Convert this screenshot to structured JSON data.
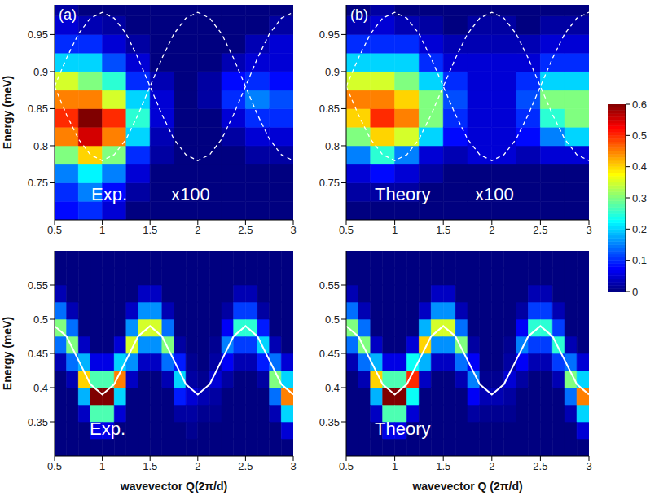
{
  "chart_data": [
    {
      "type": "heatmap",
      "panel_label": "(a)",
      "annotations": [
        "Exp.",
        "x100"
      ],
      "y_label": "Energy (meV)",
      "xlim": [
        0.5,
        3
      ],
      "xticks": [
        0.5,
        1,
        1.5,
        2,
        2.5,
        3
      ],
      "ylim": [
        0.7,
        0.99
      ],
      "yticks": [
        0.75,
        0.8,
        0.85,
        0.9,
        0.95
      ],
      "q_edges": [
        0.5,
        0.75,
        1,
        1.25,
        1.5,
        1.75,
        2,
        2.25,
        2.5,
        2.75,
        3
      ],
      "energy_edges": [
        0.7,
        0.725,
        0.75,
        0.775,
        0.8,
        0.825,
        0.85,
        0.875,
        0.9,
        0.925,
        0.95,
        0.975,
        0.99
      ],
      "intensity_by_q_bin": [
        [
          0.08,
          0.1,
          0.15,
          0.3,
          0.45,
          0.5,
          0.45,
          0.35,
          0.2,
          0.1,
          0.05,
          0.02
        ],
        [
          0.1,
          0.15,
          0.22,
          0.4,
          0.55,
          0.6,
          0.45,
          0.3,
          0.2,
          0.1,
          0.03,
          0
        ],
        [
          0.05,
          0.08,
          0.15,
          0.3,
          0.45,
          0.5,
          0.35,
          0.25,
          0.12,
          0.05,
          0.02,
          0
        ],
        [
          0,
          0.02,
          0.05,
          0.1,
          0.2,
          0.25,
          0.2,
          0.1,
          0.05,
          0.02,
          0,
          0
        ],
        [
          0,
          0,
          0,
          0.02,
          0.03,
          0.05,
          0.05,
          0.03,
          0,
          0,
          0,
          0
        ],
        [
          0,
          0,
          0,
          0,
          0,
          0,
          0,
          0,
          0,
          0,
          0,
          0
        ],
        [
          0,
          0,
          0,
          0,
          0,
          0,
          0.02,
          0.02,
          0,
          0,
          0,
          0
        ],
        [
          0,
          0,
          0,
          0,
          0.02,
          0.05,
          0.1,
          0.08,
          0.03,
          0,
          0,
          0
        ],
        [
          0,
          0,
          0,
          0.02,
          0.05,
          0.1,
          0.15,
          0.1,
          0.05,
          0.03,
          0,
          0
        ],
        [
          0,
          0,
          0,
          0.02,
          0.05,
          0.1,
          0.12,
          0.08,
          0.05,
          0.05,
          0.02,
          0
        ]
      ],
      "x": [
        0.5,
        0.625,
        0.75,
        0.875,
        1,
        1.125,
        1.25,
        1.375,
        1.5,
        1.625,
        1.75,
        1.875,
        2,
        2.125,
        2.25,
        2.375,
        2.5,
        2.625,
        2.75,
        2.875,
        3
      ],
      "series": [
        {
          "color": "#ffffff",
          "line_style": "dashed",
          "values": [
            0.88,
            0.918,
            0.951,
            0.972,
            0.98,
            0.972,
            0.951,
            0.918,
            0.88,
            0.842,
            0.809,
            0.788,
            0.78,
            0.788,
            0.809,
            0.842,
            0.88,
            0.918,
            0.951,
            0.972,
            0.98
          ]
        },
        {
          "color": "#ffffff",
          "line_style": "dashed",
          "values": [
            0.88,
            0.842,
            0.809,
            0.788,
            0.78,
            0.788,
            0.809,
            0.842,
            0.88,
            0.918,
            0.951,
            0.972,
            0.98,
            0.972,
            0.951,
            0.918,
            0.88,
            0.842,
            0.809,
            0.788,
            0.78
          ]
        }
      ]
    },
    {
      "type": "heatmap",
      "panel_label": "(b)",
      "annotations": [
        "Theory",
        "x100"
      ],
      "xlim": [
        0.5,
        3
      ],
      "xticks": [
        0.5,
        1,
        1.5,
        2,
        2.5,
        3
      ],
      "ylim": [
        0.7,
        0.99
      ],
      "yticks": [
        0.75,
        0.8,
        0.85,
        0.9,
        0.95
      ],
      "q_edges": [
        0.5,
        0.75,
        1,
        1.25,
        1.5,
        1.75,
        2,
        2.25,
        2.5,
        2.75,
        3
      ],
      "energy_edges": [
        0.7,
        0.725,
        0.75,
        0.775,
        0.8,
        0.825,
        0.85,
        0.875,
        0.9,
        0.925,
        0.95,
        0.975,
        0.99
      ],
      "intensity_by_q_bin": [
        [
          0,
          0.02,
          0.05,
          0.15,
          0.3,
          0.4,
          0.45,
          0.35,
          0.2,
          0.1,
          0.03,
          0
        ],
        [
          0,
          0.02,
          0.08,
          0.25,
          0.4,
          0.5,
          0.45,
          0.35,
          0.2,
          0.1,
          0.05,
          0.02
        ],
        [
          0,
          0.02,
          0.05,
          0.15,
          0.35,
          0.45,
          0.4,
          0.3,
          0.2,
          0.1,
          0.03,
          0
        ],
        [
          0,
          0,
          0.02,
          0.05,
          0.2,
          0.3,
          0.3,
          0.2,
          0.1,
          0.05,
          0.02,
          0
        ],
        [
          0,
          0,
          0,
          0.03,
          0.08,
          0.1,
          0.12,
          0.1,
          0.05,
          0.03,
          0,
          0
        ],
        [
          0,
          0,
          0,
          0.05,
          0.05,
          0.05,
          0.05,
          0.05,
          0.05,
          0.03,
          0.02,
          0
        ],
        [
          0,
          0,
          0,
          0.05,
          0.05,
          0.05,
          0.05,
          0.05,
          0.05,
          0.03,
          0.02,
          0
        ],
        [
          0,
          0,
          0,
          0.03,
          0.08,
          0.1,
          0.12,
          0.1,
          0.05,
          0.03,
          0,
          0
        ],
        [
          0,
          0,
          0,
          0.05,
          0.15,
          0.25,
          0.3,
          0.2,
          0.1,
          0.05,
          0.02,
          0
        ],
        [
          0,
          0,
          0,
          0.05,
          0.2,
          0.3,
          0.3,
          0.2,
          0.1,
          0.05,
          0.02,
          0
        ]
      ],
      "x": [
        0.5,
        0.625,
        0.75,
        0.875,
        1,
        1.125,
        1.25,
        1.375,
        1.5,
        1.625,
        1.75,
        1.875,
        2,
        2.125,
        2.25,
        2.375,
        2.5,
        2.625,
        2.75,
        2.875,
        3
      ],
      "series": [
        {
          "color": "#ffffff",
          "line_style": "dashed",
          "values": [
            0.88,
            0.918,
            0.951,
            0.972,
            0.98,
            0.972,
            0.951,
            0.918,
            0.88,
            0.842,
            0.809,
            0.788,
            0.78,
            0.788,
            0.809,
            0.842,
            0.88,
            0.918,
            0.951,
            0.972,
            0.98
          ]
        },
        {
          "color": "#ffffff",
          "line_style": "dashed",
          "values": [
            0.88,
            0.842,
            0.809,
            0.788,
            0.78,
            0.788,
            0.809,
            0.842,
            0.88,
            0.918,
            0.951,
            0.972,
            0.98,
            0.972,
            0.951,
            0.918,
            0.88,
            0.842,
            0.809,
            0.788,
            0.78
          ]
        }
      ],
      "colorbar": {
        "range": [
          0,
          0.6
        ],
        "ticks": [
          0,
          0.1,
          0.2,
          0.3,
          0.4,
          0.5,
          0.6
        ]
      }
    },
    {
      "type": "heatmap",
      "annotations": [
        "Exp."
      ],
      "y_label": "Energy (meV)",
      "x_label": "wavevector Q(2π/d)",
      "xlim": [
        0.5,
        3
      ],
      "xticks": [
        0.5,
        1,
        1.5,
        2,
        2.5,
        3
      ],
      "ylim": [
        0.3,
        0.6
      ],
      "yticks": [
        0.35,
        0.4,
        0.45,
        0.5,
        0.55
      ],
      "q_edges": [
        0.5,
        0.625,
        0.75,
        0.875,
        1,
        1.125,
        1.25,
        1.375,
        1.5,
        1.625,
        1.75,
        1.875,
        2,
        2.125,
        2.25,
        2.375,
        2.5,
        2.625,
        2.75,
        2.875,
        3
      ],
      "energy_edges": [
        0.3,
        0.325,
        0.35,
        0.375,
        0.4,
        0.425,
        0.45,
        0.475,
        0.5,
        0.525,
        0.55,
        0.575,
        0.6
      ],
      "intensity_by_q_bin": [
        [
          0,
          0,
          0,
          0,
          0,
          0.03,
          0.14,
          0.3,
          0.14,
          0.03,
          0,
          0
        ],
        [
          0,
          0,
          0,
          0,
          0.03,
          0.14,
          0.3,
          0.14,
          0.03,
          0,
          0,
          0
        ],
        [
          0,
          0,
          0.04,
          0.18,
          0.4,
          0.18,
          0.04,
          0,
          0,
          0,
          0,
          0
        ],
        [
          0,
          0.06,
          0.27,
          0.6,
          0.27,
          0.06,
          0,
          0,
          0,
          0,
          0,
          0
        ],
        [
          0,
          0.06,
          0.27,
          0.6,
          0.27,
          0.06,
          0,
          0,
          0,
          0,
          0,
          0
        ],
        [
          0,
          0,
          0.05,
          0.2,
          0.45,
          0.2,
          0.05,
          0,
          0,
          0,
          0,
          0
        ],
        [
          0,
          0,
          0,
          0,
          0.04,
          0.16,
          0.35,
          0.16,
          0.04,
          0,
          0,
          0
        ],
        [
          0,
          0,
          0,
          0,
          0,
          0.04,
          0.16,
          0.35,
          0.16,
          0.04,
          0,
          0
        ],
        [
          0,
          0,
          0,
          0,
          0,
          0.04,
          0.16,
          0.35,
          0.16,
          0.04,
          0,
          0
        ],
        [
          0,
          0,
          0,
          0,
          0.03,
          0.14,
          0.3,
          0.14,
          0.03,
          0,
          0,
          0
        ],
        [
          0,
          0,
          0.02,
          0.09,
          0.2,
          0.09,
          0.02,
          0,
          0,
          0,
          0,
          0
        ],
        [
          0,
          0.01,
          0.02,
          0.05,
          0.02,
          0.01,
          0,
          0,
          0,
          0,
          0,
          0
        ],
        [
          0,
          0,
          0.01,
          0.03,
          0.01,
          0,
          0,
          0,
          0,
          0,
          0,
          0
        ],
        [
          0,
          0,
          0.01,
          0.02,
          0.05,
          0.02,
          0.01,
          0,
          0,
          0,
          0,
          0
        ],
        [
          0,
          0,
          0,
          0,
          0.02,
          0.07,
          0.15,
          0.07,
          0.02,
          0,
          0,
          0
        ],
        [
          0,
          0,
          0,
          0,
          0,
          0.03,
          0.11,
          0.25,
          0.11,
          0.03,
          0,
          0
        ],
        [
          0,
          0,
          0,
          0,
          0,
          0.03,
          0.11,
          0.25,
          0.11,
          0.03,
          0,
          0
        ],
        [
          0,
          0,
          0,
          0,
          0.02,
          0.09,
          0.2,
          0.09,
          0.02,
          0,
          0,
          0
        ],
        [
          0,
          0,
          0.03,
          0.14,
          0.3,
          0.14,
          0.03,
          0,
          0,
          0,
          0,
          0
        ],
        [
          0,
          0.05,
          0.2,
          0.45,
          0.2,
          0.05,
          0,
          0,
          0,
          0,
          0,
          0
        ]
      ],
      "x": [
        0.5,
        0.625,
        0.75,
        0.875,
        1,
        1.125,
        1.25,
        1.375,
        1.5,
        1.625,
        1.75,
        1.875,
        2,
        2.125,
        2.25,
        2.375,
        2.5,
        2.625,
        2.75,
        2.875,
        3
      ],
      "series": [
        {
          "color": "#ffffff",
          "line_style": "solid",
          "values": [
            0.49,
            0.475,
            0.44,
            0.405,
            0.39,
            0.405,
            0.44,
            0.475,
            0.49,
            0.475,
            0.44,
            0.405,
            0.39,
            0.405,
            0.44,
            0.475,
            0.49,
            0.475,
            0.44,
            0.405,
            0.39
          ]
        }
      ]
    },
    {
      "type": "heatmap",
      "annotations": [
        "Theory"
      ],
      "x_label": "wavevector Q (2π/d)",
      "xlim": [
        0.5,
        3
      ],
      "xticks": [
        0.5,
        1,
        1.5,
        2,
        2.5,
        3
      ],
      "ylim": [
        0.3,
        0.6
      ],
      "yticks": [
        0.35,
        0.4,
        0.45,
        0.5,
        0.55
      ],
      "q_edges": [
        0.5,
        0.625,
        0.75,
        0.875,
        1,
        1.125,
        1.25,
        1.375,
        1.5,
        1.625,
        1.75,
        1.875,
        2,
        2.125,
        2.25,
        2.375,
        2.5,
        2.625,
        2.75,
        2.875,
        3
      ],
      "energy_edges": [
        0.3,
        0.325,
        0.35,
        0.375,
        0.4,
        0.425,
        0.45,
        0.475,
        0.5,
        0.525,
        0.55,
        0.575,
        0.6
      ],
      "intensity_by_q_bin": [
        [
          0,
          0,
          0,
          0,
          0,
          0.03,
          0.14,
          0.3,
          0.14,
          0.03,
          0,
          0
        ],
        [
          0,
          0,
          0,
          0,
          0.03,
          0.14,
          0.3,
          0.14,
          0.03,
          0,
          0,
          0
        ],
        [
          0,
          0,
          0.04,
          0.18,
          0.4,
          0.18,
          0.04,
          0,
          0,
          0,
          0,
          0
        ],
        [
          0,
          0.06,
          0.27,
          0.6,
          0.27,
          0.06,
          0,
          0,
          0,
          0,
          0,
          0
        ],
        [
          0,
          0.06,
          0.27,
          0.6,
          0.27,
          0.06,
          0,
          0,
          0,
          0,
          0,
          0
        ],
        [
          0,
          0,
          0.05,
          0.23,
          0.5,
          0.23,
          0.05,
          0,
          0,
          0,
          0,
          0
        ],
        [
          0,
          0,
          0,
          0,
          0.04,
          0.18,
          0.4,
          0.18,
          0.04,
          0,
          0,
          0
        ],
        [
          0,
          0,
          0,
          0,
          0,
          0.04,
          0.16,
          0.35,
          0.16,
          0.04,
          0,
          0
        ],
        [
          0,
          0,
          0,
          0,
          0,
          0.04,
          0.16,
          0.35,
          0.16,
          0.04,
          0,
          0
        ],
        [
          0,
          0,
          0,
          0,
          0.03,
          0.14,
          0.3,
          0.14,
          0.03,
          0,
          0,
          0
        ],
        [
          0,
          0,
          0.02,
          0.07,
          0.15,
          0.07,
          0.02,
          0,
          0,
          0,
          0,
          0
        ],
        [
          0,
          0,
          0.01,
          0.03,
          0.01,
          0,
          0,
          0,
          0,
          0,
          0,
          0
        ],
        [
          0,
          0,
          0.01,
          0.03,
          0.01,
          0,
          0,
          0,
          0,
          0,
          0,
          0
        ],
        [
          0,
          0,
          0.01,
          0.02,
          0.05,
          0.02,
          0.01,
          0,
          0,
          0,
          0,
          0
        ],
        [
          0,
          0,
          0,
          0,
          0.02,
          0.07,
          0.15,
          0.07,
          0.02,
          0,
          0,
          0
        ],
        [
          0,
          0,
          0,
          0,
          0,
          0.03,
          0.11,
          0.25,
          0.11,
          0.03,
          0,
          0
        ],
        [
          0,
          0,
          0,
          0,
          0,
          0.03,
          0.11,
          0.25,
          0.11,
          0.03,
          0,
          0
        ],
        [
          0,
          0,
          0,
          0,
          0.03,
          0.11,
          0.25,
          0.11,
          0.03,
          0,
          0,
          0
        ],
        [
          0,
          0,
          0.03,
          0.14,
          0.3,
          0.14,
          0.03,
          0,
          0,
          0,
          0,
          0
        ],
        [
          0,
          0.05,
          0.2,
          0.45,
          0.2,
          0.05,
          0,
          0,
          0,
          0,
          0,
          0
        ]
      ],
      "x": [
        0.5,
        0.625,
        0.75,
        0.875,
        1,
        1.125,
        1.25,
        1.375,
        1.5,
        1.625,
        1.75,
        1.875,
        2,
        2.125,
        2.25,
        2.375,
        2.5,
        2.625,
        2.75,
        2.875,
        3
      ],
      "series": [
        {
          "color": "#ffffff",
          "line_style": "solid",
          "values": [
            0.49,
            0.475,
            0.44,
            0.405,
            0.39,
            0.405,
            0.44,
            0.475,
            0.49,
            0.475,
            0.44,
            0.405,
            0.39,
            0.405,
            0.44,
            0.475,
            0.49,
            0.475,
            0.44,
            0.405,
            0.39
          ]
        }
      ]
    }
  ]
}
